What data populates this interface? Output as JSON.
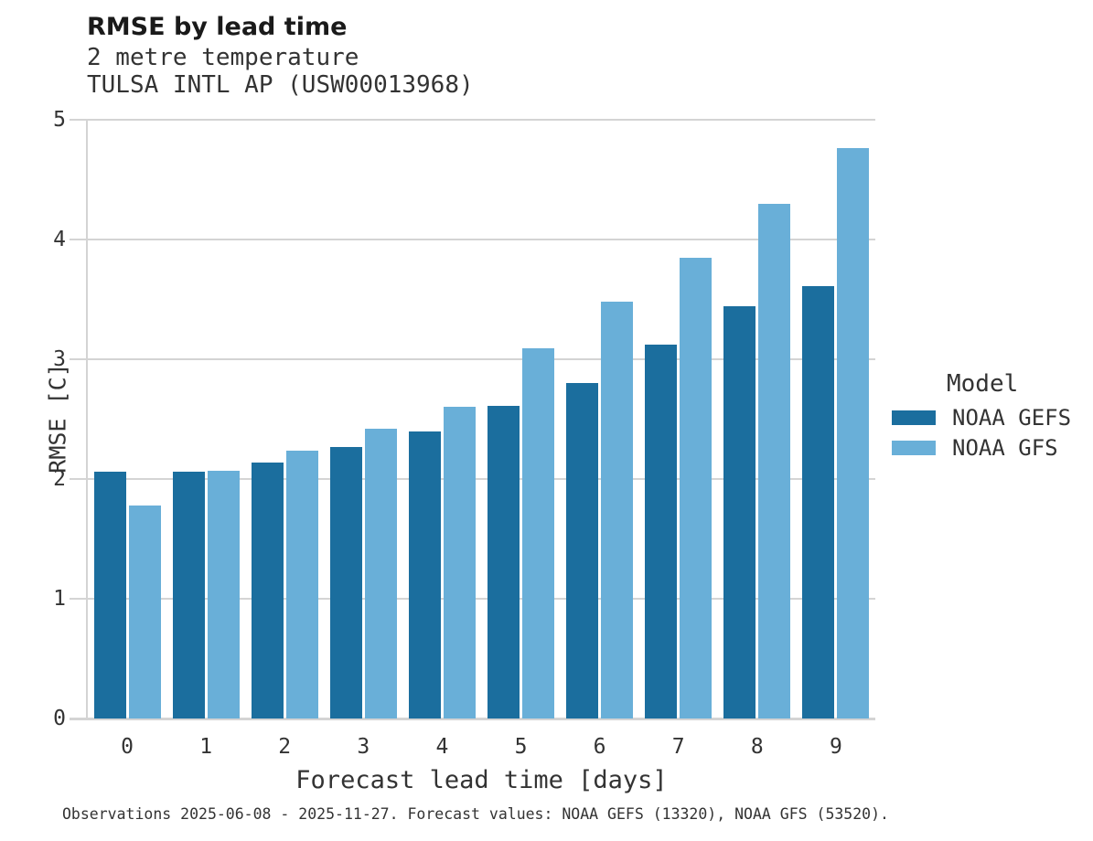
{
  "header": {
    "title": "RMSE by lead time",
    "subtitle1": "2 metre temperature",
    "subtitle2": "TULSA INTL AP (USW00013968)"
  },
  "chart_data": {
    "type": "bar",
    "categories": [
      "0",
      "1",
      "2",
      "3",
      "4",
      "5",
      "6",
      "7",
      "8",
      "9"
    ],
    "series": [
      {
        "name": "NOAA GEFS",
        "color": "#1B6E9E",
        "values": [
          2.06,
          2.06,
          2.14,
          2.27,
          2.4,
          2.61,
          2.8,
          3.12,
          3.44,
          3.61
        ]
      },
      {
        "name": "NOAA GFS",
        "color": "#69AFD8",
        "values": [
          1.78,
          2.07,
          2.24,
          2.42,
          2.6,
          3.09,
          3.48,
          3.85,
          4.3,
          4.76
        ]
      }
    ],
    "title": "RMSE by lead time",
    "xlabel": "Forecast lead time [days]",
    "ylabel": "RMSE [C]",
    "ylim": [
      0,
      5
    ],
    "yticks": [
      0,
      1,
      2,
      3,
      4,
      5
    ],
    "grid": "horizontal-only",
    "legend_title": "Model",
    "legend_position": "right"
  },
  "caption": "Observations 2025-06-08 - 2025-11-27. Forecast values: NOAA GEFS (13320), NOAA GFS (53520).",
  "colors": {
    "grid": "#d4d4d4",
    "axis": "#d4d4d4",
    "text": "#333333",
    "title_text": "#1a1a1a",
    "background": "#ffffff"
  }
}
